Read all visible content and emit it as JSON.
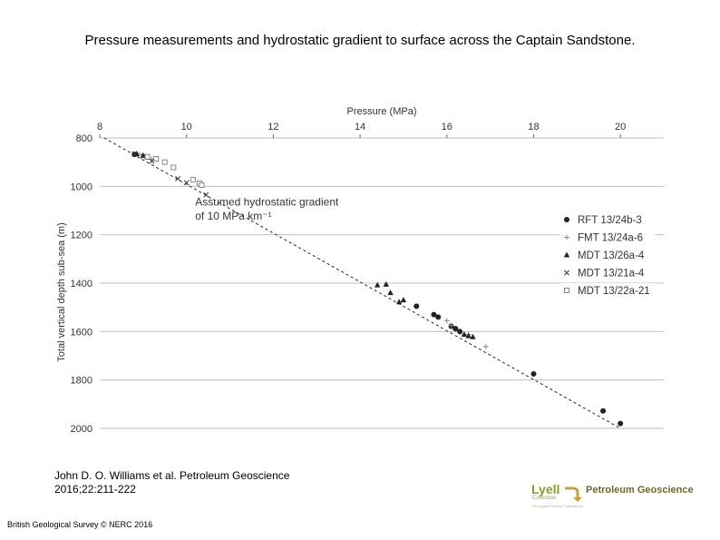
{
  "slide_title": "Pressure measurements and hydrostatic gradient to surface across the Captain Sandstone.",
  "citation": {
    "line1": "John D. O. Williams et al. Petroleum Geoscience",
    "line2": "2016;22:211-222"
  },
  "credit": "British Geological Survey © NERC 2016",
  "logo": {
    "lyell": "Lyell",
    "collection": "Collection",
    "tagline": "Geological Society Publications",
    "journal": "Petroleum Geoscience"
  },
  "colors": {
    "grid": "#bfbfbf",
    "ink": "#000000",
    "dark_marker": "#222222",
    "grey_marker": "#888888",
    "logo_green": "#8a9a2a"
  },
  "chart_data": {
    "type": "scatter",
    "title": "",
    "xlabel": "Pressure (MPa)",
    "ylabel": "Total vertical depth sub-sea (m)",
    "xlim": [
      8,
      21
    ],
    "ylim": [
      2000,
      800
    ],
    "x_ticks": [
      8,
      10,
      12,
      14,
      16,
      18,
      20
    ],
    "y_ticks": [
      800,
      1000,
      1200,
      1400,
      1600,
      1800,
      2000
    ],
    "grid": "horizontal",
    "x_axis_position": "top",
    "legend_position": "right",
    "annotation": {
      "line1": "Assumed hydrostatic gradient",
      "line2": "of 10 MPa km⁻¹"
    },
    "gradient_line": {
      "style": "dashed",
      "points": [
        [
          8.1,
          800
        ],
        [
          20.0,
          2000
        ]
      ]
    },
    "series": [
      {
        "name": "RFT 13/24b-3",
        "marker": "circle",
        "points": [
          [
            8.8,
            868
          ],
          [
            15.3,
            1495
          ],
          [
            15.7,
            1530
          ],
          [
            15.8,
            1540
          ],
          [
            16.1,
            1578
          ],
          [
            16.2,
            1588
          ],
          [
            16.3,
            1600
          ],
          [
            18.0,
            1775
          ],
          [
            19.6,
            1928
          ],
          [
            20.0,
            1980
          ]
        ]
      },
      {
        "name": "FMT 13/24a-6",
        "marker": "plus",
        "points": [
          [
            8.9,
            868
          ],
          [
            9.1,
            878
          ],
          [
            9.2,
            888
          ],
          [
            16.0,
            1555
          ],
          [
            16.1,
            1575
          ],
          [
            16.5,
            1612
          ],
          [
            16.9,
            1662
          ]
        ]
      },
      {
        "name": "MDT 13/26a-4",
        "marker": "triangle",
        "points": [
          [
            8.85,
            866
          ],
          [
            9.0,
            872
          ],
          [
            9.1,
            880
          ],
          [
            14.4,
            1408
          ],
          [
            14.6,
            1405
          ],
          [
            14.7,
            1440
          ],
          [
            14.9,
            1478
          ],
          [
            15.0,
            1470
          ],
          [
            16.4,
            1612
          ],
          [
            16.5,
            1618
          ],
          [
            16.6,
            1622
          ]
        ]
      },
      {
        "name": "MDT 13/21a-4",
        "marker": "cross",
        "points": [
          [
            8.8,
            866
          ],
          [
            9.0,
            876
          ],
          [
            9.2,
            896
          ],
          [
            9.8,
            968
          ],
          [
            10.0,
            985
          ],
          [
            10.45,
            1035
          ]
        ]
      },
      {
        "name": "MDT 13/22a-21",
        "marker": "square",
        "points": [
          [
            9.1,
            878
          ],
          [
            9.3,
            886
          ],
          [
            9.5,
            900
          ],
          [
            9.7,
            922
          ],
          [
            10.15,
            972
          ],
          [
            10.3,
            987
          ],
          [
            10.35,
            995
          ]
        ]
      }
    ]
  }
}
